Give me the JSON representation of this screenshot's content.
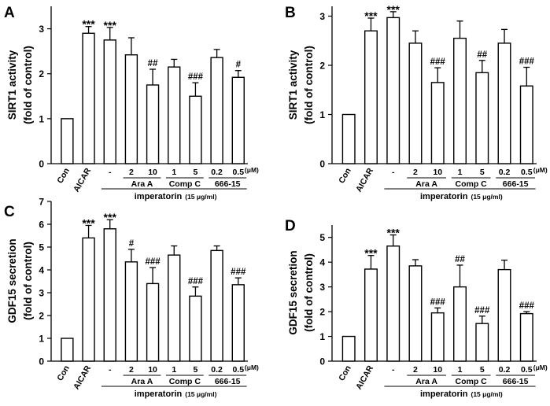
{
  "figure": {
    "categories": [
      "Con",
      "AICAR",
      "-",
      "2",
      "10",
      "1",
      "5",
      "0.2",
      "0.5"
    ],
    "unit_label": "(μM)",
    "groups": [
      {
        "label": "Ara A",
        "span": [
          3,
          4
        ]
      },
      {
        "label": "Comp C",
        "span": [
          5,
          6
        ]
      },
      {
        "label": "666-15",
        "span": [
          7,
          8
        ]
      }
    ],
    "treatment": {
      "label": "imperatorin",
      "unit": "(15 μg/ml)"
    }
  },
  "chart_data": [
    {
      "panel": "A",
      "type": "bar",
      "ylabel_line1": "SIRT1 activity",
      "ylabel_line2": "(fold of control)",
      "ylim": [
        0,
        3.5
      ],
      "yticks": [
        0,
        1,
        2,
        3
      ],
      "values": [
        1.0,
        2.9,
        2.75,
        2.42,
        1.75,
        2.15,
        1.5,
        2.36,
        1.92
      ],
      "errors": [
        0,
        0.15,
        0.28,
        0.38,
        0.35,
        0.17,
        0.3,
        0.18,
        0.15
      ],
      "annotations": [
        "",
        "***",
        "***",
        "",
        "##",
        "",
        "###",
        "",
        "#"
      ]
    },
    {
      "panel": "B",
      "type": "bar",
      "ylabel_line1": "SIRT1 activity",
      "ylabel_line2": "(fold of control)",
      "ylim": [
        0,
        3.2
      ],
      "yticks": [
        0,
        1,
        2,
        3
      ],
      "values": [
        1.0,
        2.7,
        2.97,
        2.45,
        1.65,
        2.55,
        1.85,
        2.45,
        1.58
      ],
      "errors": [
        0,
        0.26,
        0.12,
        0.25,
        0.3,
        0.35,
        0.25,
        0.28,
        0.38
      ],
      "annotations": [
        "",
        "***",
        "***",
        "",
        "###",
        "",
        "##",
        "",
        "###"
      ]
    },
    {
      "panel": "C",
      "type": "bar",
      "ylabel_line1": "GDF15 secretion",
      "ylabel_line2": "(fold of control)",
      "ylim": [
        0,
        7
      ],
      "yticks": [
        0,
        1,
        2,
        3,
        4,
        5,
        6,
        7
      ],
      "values": [
        1.0,
        5.4,
        5.8,
        4.35,
        3.4,
        4.65,
        2.85,
        4.85,
        3.35
      ],
      "errors": [
        0,
        0.55,
        0.4,
        0.55,
        0.7,
        0.4,
        0.4,
        0.2,
        0.3
      ],
      "annotations": [
        "",
        "***",
        "***",
        "#",
        "###",
        "",
        "###",
        "",
        "###"
      ]
    },
    {
      "panel": "D",
      "type": "bar",
      "ylabel_line1": "GDF15 secretion",
      "ylabel_line2": "(fold of control)",
      "ylim": [
        0,
        5.5
      ],
      "yticks": [
        0,
        1,
        2,
        3,
        4,
        5
      ],
      "values": [
        1.0,
        3.72,
        4.65,
        3.85,
        1.95,
        3.0,
        1.52,
        3.7,
        1.92
      ],
      "errors": [
        0,
        0.55,
        0.45,
        0.25,
        0.2,
        0.88,
        0.3,
        0.38,
        0.08
      ],
      "annotations": [
        "",
        "***",
        "***",
        "",
        "###",
        "##",
        "###",
        "",
        "###"
      ]
    }
  ]
}
